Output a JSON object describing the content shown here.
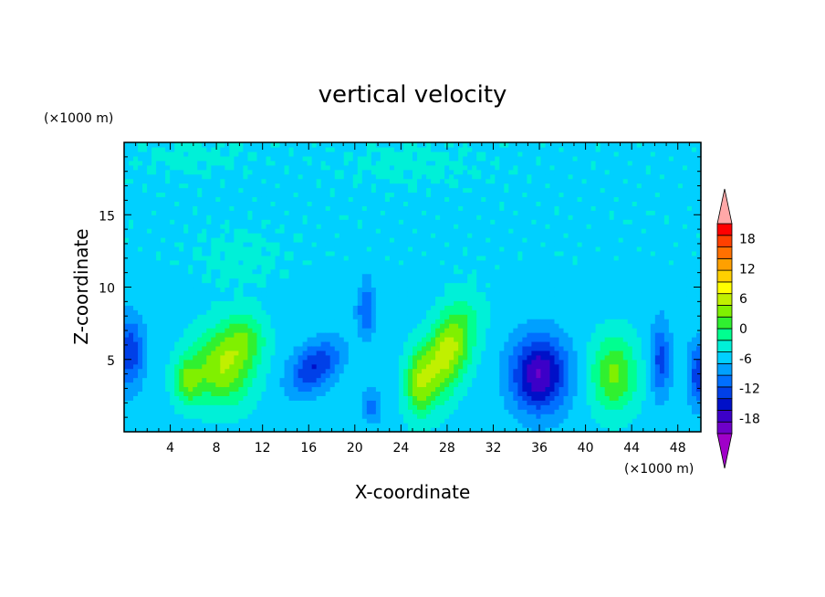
{
  "chart_data": {
    "type": "heatmap",
    "title": "vertical velocity",
    "xlabel": "X-coordinate",
    "ylabel": "Z-coordinate",
    "x_unit": "(×1000 m)",
    "y_unit": "(×1000 m)",
    "xlim": [
      0,
      50
    ],
    "ylim": [
      0,
      20
    ],
    "x_ticks": [
      "4",
      "8",
      "12",
      "16",
      "20",
      "24",
      "28",
      "32",
      "36",
      "40",
      "44",
      "48"
    ],
    "x_tick_values": [
      4,
      8,
      12,
      16,
      20,
      24,
      28,
      32,
      36,
      40,
      44,
      48
    ],
    "y_ticks": [
      "5",
      "10",
      "15"
    ],
    "y_tick_values": [
      5,
      10,
      15
    ],
    "colorbar": {
      "min": -21,
      "max": 21,
      "step": 3,
      "labels": [
        "18",
        "12",
        "6",
        "0",
        "-6",
        "-12",
        "-18"
      ],
      "label_values": [
        18,
        12,
        6,
        0,
        -6,
        -12,
        -18
      ],
      "extend": "both",
      "colors": [
        "#a000c8",
        "#6e00c8",
        "#3c00c8",
        "#0010c8",
        "#0040e8",
        "#0070ff",
        "#00a0ff",
        "#00d0ff",
        "#00f0d8",
        "#00ff90",
        "#30f030",
        "#80f000",
        "#c0f000",
        "#ffff00",
        "#ffd000",
        "#ffa000",
        "#ff7000",
        "#ff4000",
        "#ff0000",
        "#ffa8a8"
      ]
    },
    "features": [
      {
        "x": 0.5,
        "z": 5.5,
        "amp": -10,
        "sx": 1.2,
        "sz": 2.5,
        "tilt": 0
      },
      {
        "x": 8.5,
        "z": 4.5,
        "amp": 13,
        "sx": 2.6,
        "sz": 2.6,
        "tilt": 0
      },
      {
        "x": 5.5,
        "z": 3.5,
        "amp": 9,
        "sx": 1.2,
        "sz": 1.6,
        "tilt": 0
      },
      {
        "x": 10.5,
        "z": 6.5,
        "amp": 7,
        "sx": 1.8,
        "sz": 1.8,
        "tilt": 0
      },
      {
        "x": 16.5,
        "z": 4.5,
        "amp": -11,
        "sx": 2.0,
        "sz": 1.8,
        "tilt": 0.5
      },
      {
        "x": 21.0,
        "z": 8.5,
        "amp": -8,
        "sx": 0.8,
        "sz": 1.8,
        "tilt": 0
      },
      {
        "x": 21.5,
        "z": 1.8,
        "amp": -6,
        "sx": 0.8,
        "sz": 1.2,
        "tilt": 0
      },
      {
        "x": 28.0,
        "z": 5.5,
        "amp": 15,
        "sx": 2.0,
        "sz": 3.2,
        "tilt": 0.35
      },
      {
        "x": 25.5,
        "z": 3.5,
        "amp": 9,
        "sx": 1.2,
        "sz": 2.2,
        "tilt": 0
      },
      {
        "x": 36.0,
        "z": 4.0,
        "amp": -17,
        "sx": 2.4,
        "sz": 2.6,
        "tilt": 0
      },
      {
        "x": 42.5,
        "z": 4.0,
        "amp": 11,
        "sx": 2.0,
        "sz": 2.6,
        "tilt": 0
      },
      {
        "x": 46.5,
        "z": 5.0,
        "amp": -9,
        "sx": 0.9,
        "sz": 2.6,
        "tilt": 0
      },
      {
        "x": 49.8,
        "z": 4.0,
        "amp": -10,
        "sx": 0.9,
        "sz": 2.2,
        "tilt": 0
      },
      {
        "x": 25.0,
        "z": 18.5,
        "amp": 2.5,
        "sx": 6.0,
        "sz": 1.5,
        "tilt": 0
      },
      {
        "x": 6.0,
        "z": 19.0,
        "amp": 2.5,
        "sx": 5.0,
        "sz": 1.2,
        "tilt": 0
      },
      {
        "x": 10.0,
        "z": 12.0,
        "amp": 2.5,
        "sx": 4.0,
        "sz": 2.0,
        "tilt": 0
      }
    ]
  }
}
